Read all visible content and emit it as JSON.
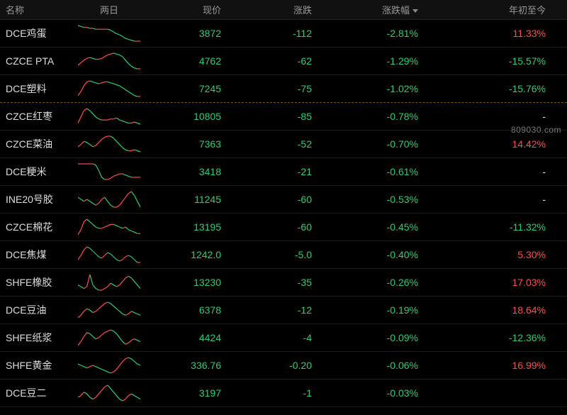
{
  "colors": {
    "background": "#000000",
    "header_bg": "#111111",
    "header_text": "#999999",
    "row_border": "#1a1a1a",
    "highlight_border": "#7a5a00",
    "text": "#dddddd",
    "positive": "#ff4d4d",
    "negative": "#2ecc71",
    "spark_up": "#ff4d4d",
    "spark_down": "#2ecc71",
    "spark_neutral": "#bbbbbb"
  },
  "watermark": "809030.com",
  "headers": {
    "name": "名称",
    "spark": "两日",
    "price": "现价",
    "change": "涨跌",
    "pct": "涨跌幅",
    "ytd": "年初至今"
  },
  "sort_column": "pct",
  "rows": [
    {
      "name": "DCE鸡蛋",
      "price": "3872",
      "change": "-112",
      "pct": "-2.81%",
      "ytd": "11.33%",
      "ytd_color": "pos",
      "highlight": false,
      "spark": [
        22,
        21,
        20,
        20,
        19,
        19,
        18,
        18,
        18,
        18,
        18,
        17,
        15,
        13,
        12,
        10,
        8,
        7,
        6,
        5,
        5,
        5
      ]
    },
    {
      "name": "CZCE PTA",
      "price": "4762",
      "change": "-62",
      "pct": "-1.29%",
      "ytd": "-15.57%",
      "ytd_color": "neg",
      "highlight": false,
      "spark": [
        8,
        11,
        14,
        16,
        17,
        16,
        15,
        15,
        16,
        18,
        20,
        21,
        22,
        21,
        20,
        18,
        14,
        10,
        7,
        5,
        4,
        4
      ]
    },
    {
      "name": "DCE塑料",
      "price": "7245",
      "change": "-75",
      "pct": "-1.02%",
      "ytd": "-15.76%",
      "ytd_color": "neg",
      "highlight": true,
      "spark": [
        6,
        10,
        16,
        20,
        21,
        20,
        19,
        18,
        19,
        20,
        20,
        19,
        18,
        17,
        16,
        14,
        12,
        10,
        8,
        6,
        5,
        5
      ]
    },
    {
      "name": "CZCE红枣",
      "price": "10805",
      "change": "-85",
      "pct": "-0.78%",
      "ytd": "-",
      "ytd_color": "neutral",
      "highlight": false,
      "spark": [
        8,
        14,
        20,
        22,
        20,
        17,
        14,
        12,
        11,
        11,
        11,
        12,
        12,
        13,
        11,
        10,
        9,
        8,
        8,
        9,
        8,
        7
      ]
    },
    {
      "name": "CZCE菜油",
      "price": "7363",
      "change": "-52",
      "pct": "-0.70%",
      "ytd": "14.42%",
      "ytd_color": "pos",
      "highlight": false,
      "spark": [
        10,
        12,
        15,
        14,
        12,
        10,
        11,
        14,
        17,
        19,
        20,
        20,
        18,
        15,
        12,
        9,
        7,
        6,
        6,
        7,
        6,
        5
      ]
    },
    {
      "name": "DCE粳米",
      "price": "3418",
      "change": "-21",
      "pct": "-0.61%",
      "ytd": "-",
      "ytd_color": "neutral",
      "highlight": false,
      "spark": [
        20,
        20,
        20,
        20,
        20,
        20,
        19,
        14,
        8,
        6,
        6,
        7,
        9,
        10,
        11,
        11,
        10,
        9,
        8,
        8,
        8,
        8
      ]
    },
    {
      "name": "INE20号胶",
      "price": "11245",
      "change": "-60",
      "pct": "-0.53%",
      "ytd": "-",
      "ytd_color": "neutral",
      "highlight": false,
      "spark": [
        14,
        13,
        12,
        13,
        12,
        11,
        10,
        11,
        13,
        14,
        12,
        10,
        9,
        9,
        10,
        12,
        14,
        16,
        17,
        15,
        12,
        9
      ]
    },
    {
      "name": "CZCE棉花",
      "price": "13195",
      "change": "-60",
      "pct": "-0.45%",
      "ytd": "-11.32%",
      "ytd_color": "neg",
      "highlight": false,
      "spark": [
        8,
        12,
        18,
        20,
        18,
        16,
        14,
        13,
        13,
        14,
        15,
        16,
        16,
        15,
        14,
        13,
        14,
        12,
        11,
        10,
        9,
        9
      ]
    },
    {
      "name": "DCE焦煤",
      "price": "1242.0",
      "change": "-5.0",
      "pct": "-0.40%",
      "ytd": "5.30%",
      "ytd_color": "pos",
      "highlight": false,
      "spark": [
        10,
        13,
        17,
        19,
        18,
        16,
        14,
        12,
        11,
        13,
        15,
        14,
        12,
        10,
        9,
        10,
        12,
        13,
        12,
        10,
        8,
        8
      ]
    },
    {
      "name": "SHFE橡胶",
      "price": "13230",
      "change": "-35",
      "pct": "-0.26%",
      "ytd": "17.03%",
      "ytd_color": "pos",
      "highlight": false,
      "spark": [
        12,
        11,
        10,
        11,
        18,
        12,
        10,
        9,
        9,
        10,
        11,
        13,
        12,
        11,
        12,
        14,
        16,
        17,
        16,
        14,
        12,
        10
      ]
    },
    {
      "name": "DCE豆油",
      "price": "6378",
      "change": "-12",
      "pct": "-0.19%",
      "ytd": "18.64%",
      "ytd_color": "pos",
      "highlight": false,
      "spark": [
        8,
        10,
        13,
        15,
        14,
        12,
        13,
        15,
        17,
        19,
        20,
        19,
        17,
        15,
        13,
        11,
        10,
        11,
        13,
        12,
        11,
        10
      ]
    },
    {
      "name": "SHFE纸浆",
      "price": "4424",
      "change": "-4",
      "pct": "-0.09%",
      "ytd": "-12.36%",
      "ytd_color": "neg",
      "highlight": false,
      "spark": [
        8,
        11,
        15,
        18,
        17,
        15,
        13,
        14,
        16,
        18,
        19,
        20,
        19,
        17,
        14,
        11,
        9,
        10,
        12,
        13,
        12,
        11
      ]
    },
    {
      "name": "SHFE黄金",
      "price": "336.76",
      "change": "-0.20",
      "pct": "-0.06%",
      "ytd": "16.99%",
      "ytd_color": "pos",
      "highlight": false,
      "spark": [
        14,
        13,
        12,
        11,
        12,
        13,
        12,
        11,
        10,
        9,
        8,
        7,
        8,
        10,
        13,
        16,
        18,
        19,
        18,
        16,
        14,
        13
      ]
    },
    {
      "name": "DCE豆二",
      "price": "3197",
      "change": "-1",
      "pct": "-0.03%",
      "ytd": "",
      "ytd_color": "neutral",
      "highlight": false,
      "spark": [
        12,
        13,
        15,
        14,
        12,
        11,
        12,
        14,
        16,
        18,
        19,
        17,
        15,
        13,
        11,
        10,
        11,
        13,
        14,
        13,
        12,
        11
      ]
    }
  ]
}
